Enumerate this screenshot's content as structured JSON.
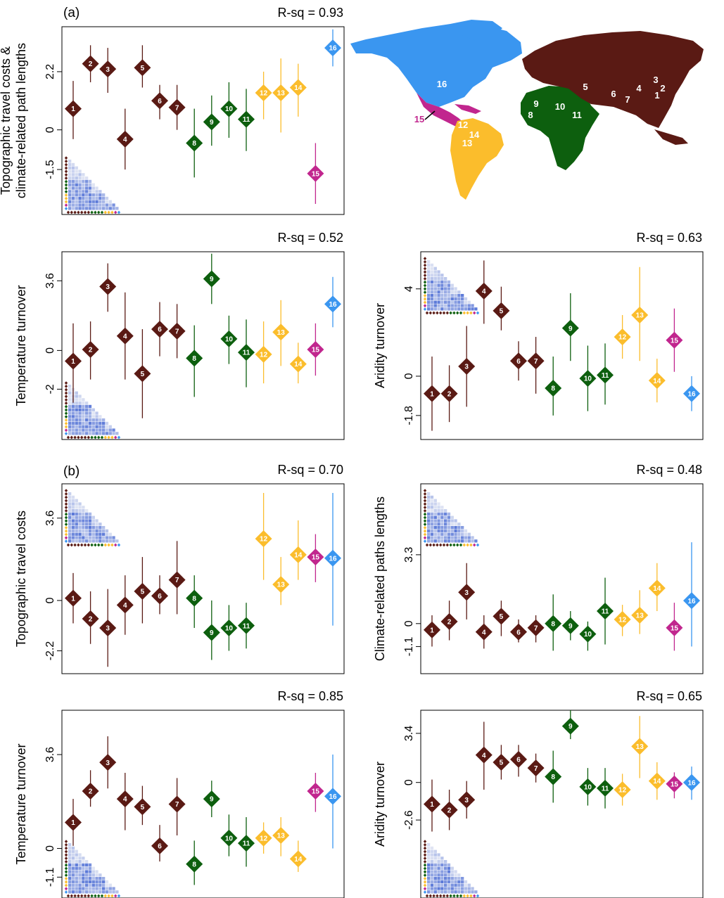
{
  "labels": {
    "a": "(a)",
    "b": "(b)"
  },
  "colors": {
    "eurasia": "#5a1a14",
    "africa": "#0d5f0e",
    "south_america": "#fbbd2c",
    "central_america": "#c1268e",
    "north_america": "#3a96f0",
    "heat_light": "#e4e8f4",
    "heat_dark": "#5b79d8"
  },
  "region_groups": [
    1,
    1,
    1,
    1,
    1,
    1,
    1,
    2,
    2,
    2,
    2,
    3,
    3,
    3,
    4,
    5
  ],
  "map": {
    "labels": [
      {
        "text": "1",
        "region": "eurasia"
      },
      {
        "text": "2",
        "region": "eurasia"
      },
      {
        "text": "3",
        "region": "eurasia"
      },
      {
        "text": "4",
        "region": "eurasia"
      },
      {
        "text": "5",
        "region": "eurasia"
      },
      {
        "text": "6",
        "region": "eurasia"
      },
      {
        "text": "7",
        "region": "eurasia"
      },
      {
        "text": "8",
        "region": "africa"
      },
      {
        "text": "9",
        "region": "africa"
      },
      {
        "text": "10",
        "region": "africa"
      },
      {
        "text": "11",
        "region": "africa"
      },
      {
        "text": "12",
        "region": "south_america"
      },
      {
        "text": "13",
        "region": "south_america"
      },
      {
        "text": "14",
        "region": "south_america"
      },
      {
        "text": "15",
        "region": "central_america"
      },
      {
        "text": "16",
        "region": "north_america"
      }
    ]
  },
  "chart_data": [
    {
      "type": "scatter",
      "ylabel": [
        "Topographic travel costs &",
        "climate-related path lengths"
      ],
      "r_squared": "R-sq = 0.93",
      "yticks": [
        2.2,
        0,
        -1.5
      ],
      "ylim": [
        -3.2,
        3.9
      ],
      "heatmap": "bottom-left",
      "points": [
        {
          "label": "1",
          "value": 0.8,
          "lo": -0.35,
          "hi": 1.85
        },
        {
          "label": "2",
          "value": 2.5,
          "lo": 1.8,
          "hi": 3.2
        },
        {
          "label": "3",
          "value": 2.3,
          "lo": 1.4,
          "hi": 3.1
        },
        {
          "label": "4",
          "value": -0.35,
          "lo": -1.5,
          "hi": 0.8
        },
        {
          "label": "5",
          "value": 2.35,
          "lo": 1.6,
          "hi": 3.2
        },
        {
          "label": "6",
          "value": 1.1,
          "lo": 0.4,
          "hi": 1.7
        },
        {
          "label": "7",
          "value": 0.85,
          "lo": 0.0,
          "hi": 1.7
        },
        {
          "label": "8",
          "value": -0.5,
          "lo": -1.8,
          "hi": 0.8
        },
        {
          "label": "9",
          "value": 0.3,
          "lo": -0.6,
          "hi": 1.3
        },
        {
          "label": "10",
          "value": 0.8,
          "lo": -0.3,
          "hi": 1.8
        },
        {
          "label": "11",
          "value": 0.4,
          "lo": -0.8,
          "hi": 1.55
        },
        {
          "label": "12",
          "value": 1.4,
          "lo": 0.4,
          "hi": 2.2
        },
        {
          "label": "13",
          "value": 1.4,
          "lo": -0.1,
          "hi": 2.7
        },
        {
          "label": "14",
          "value": 1.6,
          "lo": 0.5,
          "hi": 2.5
        },
        {
          "label": "15",
          "value": -1.65,
          "lo": -2.8,
          "hi": -0.5
        },
        {
          "label": "16",
          "value": 3.1,
          "lo": 2.4,
          "hi": 3.8
        }
      ]
    },
    {
      "type": "scatter",
      "ylabel": [
        "Temperature turnover"
      ],
      "r_squared": "R-sq = 0.52",
      "yticks": [
        3.6,
        0,
        -2
      ],
      "ylim": [
        -4.6,
        5.1
      ],
      "heatmap": "bottom-left",
      "points": [
        {
          "label": "1",
          "value": -0.55,
          "lo": -2.7,
          "hi": 1.4
        },
        {
          "label": "2",
          "value": 0.05,
          "lo": -1.5,
          "hi": 1.5
        },
        {
          "label": "3",
          "value": 3.3,
          "lo": 2.0,
          "hi": 4.5
        },
        {
          "label": "4",
          "value": 0.75,
          "lo": -1.5,
          "hi": 3.0
        },
        {
          "label": "5",
          "value": -1.2,
          "lo": -3.5,
          "hi": 1.1
        },
        {
          "label": "6",
          "value": 1.1,
          "lo": -0.3,
          "hi": 2.5
        },
        {
          "label": "7",
          "value": 1.0,
          "lo": -0.4,
          "hi": 2.4
        },
        {
          "label": "8",
          "value": -0.4,
          "lo": -2.4,
          "hi": 1.3
        },
        {
          "label": "9",
          "value": 3.7,
          "lo": 2.4,
          "hi": 5.0
        },
        {
          "label": "10",
          "value": 0.6,
          "lo": -0.7,
          "hi": 1.8
        },
        {
          "label": "11",
          "value": -0.1,
          "lo": -1.9,
          "hi": 1.6
        },
        {
          "label": "12",
          "value": -0.2,
          "lo": -1.7,
          "hi": 1.5
        },
        {
          "label": "13",
          "value": 0.95,
          "lo": -0.8,
          "hi": 2.6
        },
        {
          "label": "14",
          "value": -0.7,
          "lo": -1.7,
          "hi": 0.4
        },
        {
          "label": "15",
          "value": 0.05,
          "lo": -1.3,
          "hi": 1.4
        },
        {
          "label": "16",
          "value": 2.4,
          "lo": 1.2,
          "hi": 3.8
        }
      ]
    },
    {
      "type": "scatter",
      "ylabel": [
        "Aridity turnover"
      ],
      "r_squared": "R-sq = 0.63",
      "yticks": [
        4,
        0,
        -1.8
      ],
      "ylim": [
        -2.9,
        5.7
      ],
      "heatmap": "top-left",
      "points": [
        {
          "label": "1",
          "value": -0.8,
          "lo": -2.5,
          "hi": 0.9
        },
        {
          "label": "2",
          "value": -0.8,
          "lo": -2.1,
          "hi": 0.5
        },
        {
          "label": "3",
          "value": 0.45,
          "lo": -1.4,
          "hi": 2.3
        },
        {
          "label": "4",
          "value": 3.9,
          "lo": 2.4,
          "hi": 5.3
        },
        {
          "label": "5",
          "value": 3.0,
          "lo": 2.1,
          "hi": 4.1
        },
        {
          "label": "6",
          "value": 0.7,
          "lo": -0.2,
          "hi": 1.6
        },
        {
          "label": "7",
          "value": 0.7,
          "lo": -0.8,
          "hi": 1.8
        },
        {
          "label": "8",
          "value": -0.55,
          "lo": -1.8,
          "hi": 0.9
        },
        {
          "label": "9",
          "value": 2.2,
          "lo": 0.7,
          "hi": 3.8
        },
        {
          "label": "10",
          "value": -0.1,
          "lo": -1.6,
          "hi": 1.4
        },
        {
          "label": "11",
          "value": 0.05,
          "lo": -1.3,
          "hi": 1.5
        },
        {
          "label": "12",
          "value": 1.8,
          "lo": 0.8,
          "hi": 2.8
        },
        {
          "label": "13",
          "value": 2.8,
          "lo": 0.7,
          "hi": 5.0
        },
        {
          "label": "14",
          "value": -0.2,
          "lo": -1.2,
          "hi": 0.8
        },
        {
          "label": "15",
          "value": 1.65,
          "lo": 0.2,
          "hi": 3.1
        },
        {
          "label": "16",
          "value": -0.8,
          "lo": -1.6,
          "hi": 0.0
        }
      ]
    },
    {
      "type": "scatter",
      "ylabel": [
        "Topographic travel costs"
      ],
      "r_squared": "R-sq = 0.70",
      "yticks": [
        3.6,
        0,
        -2.2
      ],
      "ylim": [
        -3.2,
        5.1
      ],
      "heatmap": "top-left",
      "points": [
        {
          "label": "1",
          "value": 0.1,
          "lo": -1.0,
          "hi": 1.2
        },
        {
          "label": "2",
          "value": -0.8,
          "lo": -1.9,
          "hi": 0.4
        },
        {
          "label": "3",
          "value": -1.2,
          "lo": -2.9,
          "hi": 0.5
        },
        {
          "label": "4",
          "value": -0.2,
          "lo": -1.5,
          "hi": 1.1
        },
        {
          "label": "5",
          "value": 0.4,
          "lo": -1.0,
          "hi": 1.9
        },
        {
          "label": "6",
          "value": 0.2,
          "lo": -0.6,
          "hi": 1.1
        },
        {
          "label": "7",
          "value": 0.9,
          "lo": -0.6,
          "hi": 2.6
        },
        {
          "label": "8",
          "value": 0.1,
          "lo": -1.2,
          "hi": 1.1
        },
        {
          "label": "9",
          "value": -1.4,
          "lo": -2.6,
          "hi": 0.0
        },
        {
          "label": "10",
          "value": -1.2,
          "lo": -2.2,
          "hi": -0.2
        },
        {
          "label": "11",
          "value": -1.1,
          "lo": -2.1,
          "hi": -0.1
        },
        {
          "label": "12",
          "value": 2.7,
          "lo": 0.9,
          "hi": 4.7
        },
        {
          "label": "13",
          "value": 0.7,
          "lo": -0.2,
          "hi": 1.9
        },
        {
          "label": "14",
          "value": 2.0,
          "lo": 0.9,
          "hi": 3.5
        },
        {
          "label": "15",
          "value": 1.9,
          "lo": 0.8,
          "hi": 2.9
        },
        {
          "label": "16",
          "value": 1.85,
          "lo": -1.1,
          "hi": 4.7
        }
      ]
    },
    {
      "type": "scatter",
      "ylabel": [
        "Climate-related paths lengths"
      ],
      "r_squared": "R-sq = 0.48",
      "yticks": [
        3.3,
        0,
        -1.1
      ],
      "ylim": [
        -2.4,
        6.7
      ],
      "heatmap": "top-left",
      "points": [
        {
          "label": "1",
          "value": -0.3,
          "lo": -1.1,
          "hi": 0.4
        },
        {
          "label": "2",
          "value": 0.1,
          "lo": -0.8,
          "hi": 1.1
        },
        {
          "label": "3",
          "value": 1.5,
          "lo": 0.2,
          "hi": 2.9
        },
        {
          "label": "4",
          "value": -0.4,
          "lo": -1.2,
          "hi": 0.4
        },
        {
          "label": "5",
          "value": 0.35,
          "lo": -0.6,
          "hi": 1.1
        },
        {
          "label": "6",
          "value": -0.4,
          "lo": -0.9,
          "hi": 0.2
        },
        {
          "label": "7",
          "value": -0.2,
          "lo": -0.9,
          "hi": 0.4
        },
        {
          "label": "8",
          "value": 0.0,
          "lo": -1.3,
          "hi": 1.4
        },
        {
          "label": "9",
          "value": -0.1,
          "lo": -0.8,
          "hi": 0.6
        },
        {
          "label": "10",
          "value": -0.5,
          "lo": -1.3,
          "hi": 0.1
        },
        {
          "label": "11",
          "value": 0.6,
          "lo": -1.0,
          "hi": 2.2
        },
        {
          "label": "12",
          "value": 0.2,
          "lo": -0.6,
          "hi": 0.9
        },
        {
          "label": "13",
          "value": 0.4,
          "lo": -0.5,
          "hi": 1.6
        },
        {
          "label": "14",
          "value": 1.7,
          "lo": 0.6,
          "hi": 2.9
        },
        {
          "label": "15",
          "value": -0.2,
          "lo": -1.3,
          "hi": 1.0
        },
        {
          "label": "16",
          "value": 1.1,
          "lo": -1.1,
          "hi": 3.9
        }
      ]
    },
    {
      "type": "scatter",
      "ylabel": [
        "Temperature turnover"
      ],
      "r_squared": "R-sq = 0.85",
      "yticks": [
        3.6,
        0,
        -1.1
      ],
      "ylim": [
        -1.9,
        5.3
      ],
      "heatmap": "bottom-left",
      "points": [
        {
          "label": "1",
          "value": 1.0,
          "lo": 0.1,
          "hi": 1.9
        },
        {
          "label": "2",
          "value": 2.2,
          "lo": 1.6,
          "hi": 3.0
        },
        {
          "label": "3",
          "value": 3.3,
          "lo": 2.3,
          "hi": 4.3
        },
        {
          "label": "4",
          "value": 1.9,
          "lo": 0.7,
          "hi": 2.9
        },
        {
          "label": "5",
          "value": 1.6,
          "lo": 0.9,
          "hi": 2.4
        },
        {
          "label": "6",
          "value": 0.1,
          "lo": -0.5,
          "hi": 0.9
        },
        {
          "label": "7",
          "value": 1.7,
          "lo": 0.5,
          "hi": 2.7
        },
        {
          "label": "8",
          "value": -0.6,
          "lo": -1.4,
          "hi": 0.3
        },
        {
          "label": "9",
          "value": 1.9,
          "lo": 1.2,
          "hi": 2.6
        },
        {
          "label": "10",
          "value": 0.4,
          "lo": -0.3,
          "hi": 1.3
        },
        {
          "label": "11",
          "value": 0.2,
          "lo": -0.7,
          "hi": 1.2
        },
        {
          "label": "12",
          "value": 0.4,
          "lo": -0.2,
          "hi": 1.0
        },
        {
          "label": "13",
          "value": 0.5,
          "lo": -0.3,
          "hi": 1.2
        },
        {
          "label": "14",
          "value": -0.4,
          "lo": -0.9,
          "hi": 0.3
        },
        {
          "label": "15",
          "value": 2.2,
          "lo": 1.4,
          "hi": 2.9
        },
        {
          "label": "16",
          "value": 2.0,
          "lo": 0.0,
          "hi": 3.6
        }
      ]
    },
    {
      "type": "scatter",
      "ylabel": [
        "Aridity turnover"
      ],
      "r_squared": "R-sq = 0.65",
      "yticks": [
        3.4,
        0,
        -2.6
      ],
      "ylim": [
        -8.0,
        5.0
      ],
      "heatmap": "bottom-left",
      "points": [
        {
          "label": "1",
          "value": -1.5,
          "lo": -3.4,
          "hi": 0.2
        },
        {
          "label": "2",
          "value": -1.9,
          "lo": -3.3,
          "hi": -0.5
        },
        {
          "label": "3",
          "value": -1.2,
          "lo": -2.5,
          "hi": 0.1
        },
        {
          "label": "4",
          "value": 1.9,
          "lo": -0.5,
          "hi": 4.2
        },
        {
          "label": "5",
          "value": 1.4,
          "lo": 0.2,
          "hi": 2.6
        },
        {
          "label": "6",
          "value": 1.6,
          "lo": 0.4,
          "hi": 2.6
        },
        {
          "label": "7",
          "value": 1.0,
          "lo": 0.0,
          "hi": 2.0
        },
        {
          "label": "8",
          "value": 0.4,
          "lo": -1.4,
          "hi": 2.2
        },
        {
          "label": "9",
          "value": 3.9,
          "lo": 3.0,
          "hi": 5.0
        },
        {
          "label": "10",
          "value": -0.3,
          "lo": -1.6,
          "hi": 1.0
        },
        {
          "label": "11",
          "value": -0.4,
          "lo": -1.8,
          "hi": 1.0
        },
        {
          "label": "12",
          "value": -0.5,
          "lo": -1.6,
          "hi": 0.6
        },
        {
          "label": "13",
          "value": 2.5,
          "lo": 0.3,
          "hi": 4.6
        },
        {
          "label": "14",
          "value": 0.1,
          "lo": -1.2,
          "hi": 1.4
        },
        {
          "label": "15",
          "value": -0.1,
          "lo": -1.1,
          "hi": 0.7
        },
        {
          "label": "16",
          "value": 0.0,
          "lo": -1.2,
          "hi": 1.1
        }
      ]
    }
  ]
}
